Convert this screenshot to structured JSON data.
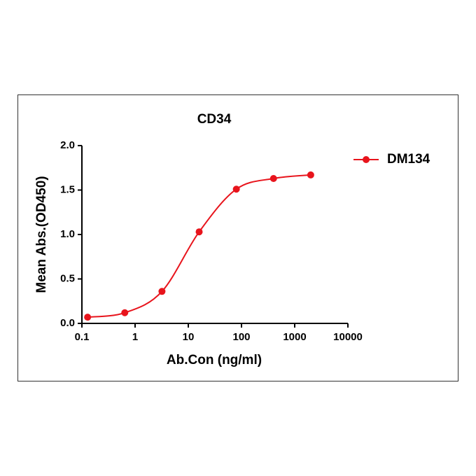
{
  "chart_data": {
    "type": "line",
    "title": "CD34",
    "x_label": "Ab.Con (ng/ml)",
    "y_label": "Mean Abs.(OD450)",
    "x_scale": "log",
    "x": [
      0.128,
      0.64,
      3.2,
      16,
      80,
      400,
      2000
    ],
    "series": [
      {
        "name": "DM134",
        "color": "#e8141c",
        "values": [
          0.07,
          0.12,
          0.36,
          1.03,
          1.51,
          1.63,
          1.67
        ]
      }
    ],
    "xlim": [
      0.1,
      10000
    ],
    "xticks": [
      0.1,
      1,
      10,
      100,
      1000,
      10000
    ],
    "ylim": [
      0,
      2
    ],
    "yticks": [
      {
        "value": 0,
        "label": "0.0"
      },
      0.5,
      {
        "value": 1,
        "label": "1.0"
      },
      1.5,
      {
        "value": 2,
        "label": "2.0"
      }
    ],
    "legend": "right"
  }
}
